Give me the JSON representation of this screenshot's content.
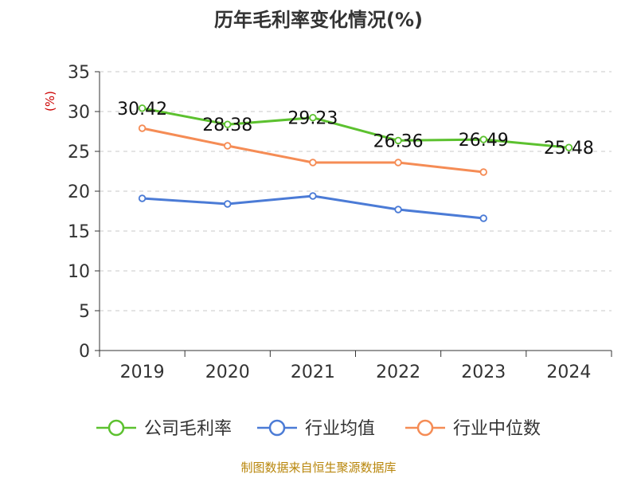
{
  "chart_data": {
    "type": "line",
    "title": "历年毛利率变化情况(%)",
    "ylabel": "(%)",
    "xlabel": "",
    "categories": [
      "2019",
      "2020",
      "2021",
      "2022",
      "2023",
      "2024"
    ],
    "ylim": [
      0,
      35
    ],
    "yticks": [
      0,
      5,
      10,
      15,
      20,
      25,
      30,
      35
    ],
    "grid": true,
    "legend_position": "bottom",
    "series": [
      {
        "name": "公司毛利率",
        "color": "#5cc12f",
        "values": [
          30.42,
          28.38,
          29.23,
          26.36,
          26.49,
          25.48
        ],
        "labels": [
          "30.42",
          "28.38",
          "29.23",
          "26.36",
          "26.49",
          "25.48"
        ]
      },
      {
        "name": "行业均值",
        "color": "#4b7bd6",
        "values": [
          19.1,
          18.4,
          19.4,
          17.7,
          16.6,
          null
        ]
      },
      {
        "name": "行业中位数",
        "color": "#f58c55",
        "values": [
          27.9,
          25.7,
          23.6,
          23.6,
          22.4,
          null
        ]
      }
    ],
    "source": "制图数据来自恒生聚源数据库"
  }
}
